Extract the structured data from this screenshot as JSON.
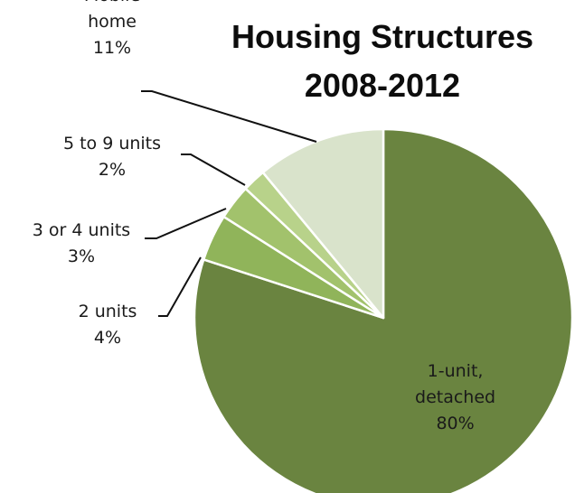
{
  "chart_data": {
    "type": "pie",
    "title": "Housing Structures",
    "subtitle": "2008-2012",
    "categories": [
      "1-unit, detached",
      "2 units",
      "3 or 4 units",
      "5 to 9 units",
      "Mobile home"
    ],
    "values": [
      80,
      4,
      3,
      2,
      11
    ],
    "value_suffix": "%",
    "start_angle_deg": 0,
    "direction": "clockwise",
    "legend": "none",
    "colors": [
      "#6a8440",
      "#90b45a",
      "#a2c26c",
      "#b8d28a",
      "#d9e3cb"
    ],
    "slice_edge_color": "#ffffff",
    "data_labels": [
      {
        "lines": [
          "1-unit,",
          "detached"
        ],
        "percent": "80%"
      },
      {
        "lines": [
          "2 units"
        ],
        "percent": "4%"
      },
      {
        "lines": [
          "3 or 4 units"
        ],
        "percent": "3%"
      },
      {
        "lines": [
          "5 to 9 units"
        ],
        "percent": "2%"
      },
      {
        "lines": [
          "Mobile",
          "home"
        ],
        "percent": "11%"
      }
    ]
  }
}
